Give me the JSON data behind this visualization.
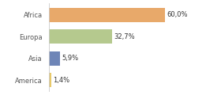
{
  "categories": [
    "America",
    "Asia",
    "Europa",
    "Africa"
  ],
  "values": [
    1.4,
    5.9,
    32.7,
    60.0
  ],
  "labels": [
    "1,4%",
    "5,9%",
    "32,7%",
    "60,0%"
  ],
  "bar_colors": [
    "#e8c96a",
    "#6e85b7",
    "#b5c98e",
    "#e8a96a"
  ],
  "background_color": "#ffffff",
  "xlim": [
    0,
    75
  ],
  "label_fontsize": 6.0,
  "tick_fontsize": 6.0,
  "bar_height": 0.65
}
